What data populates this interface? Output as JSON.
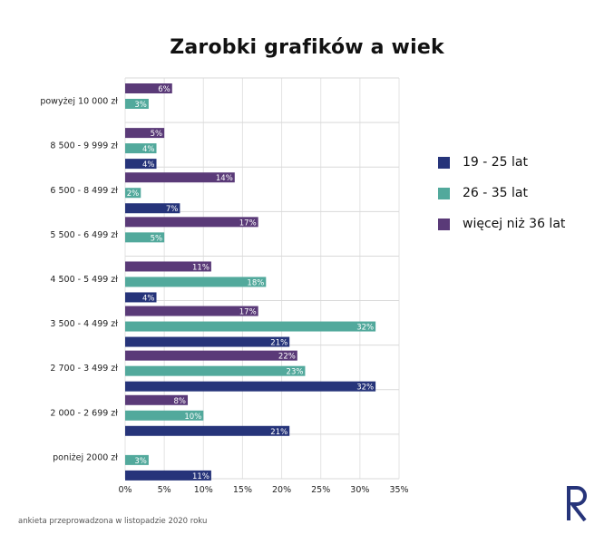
{
  "chart_data": {
    "type": "bar",
    "orientation": "horizontal",
    "title": "Zarobki grafików a wiek",
    "categories": [
      "powyżej 10 000 zł",
      "8 500 - 9 999 zł",
      "6 500 - 8 499 zł",
      "5 500 - 6 499 zł",
      "4 500 - 5 499 zł",
      "3 500 - 4 499 zł",
      "2 700 - 3 499 zł",
      "2 000 - 2 699 zł",
      "poniżej 2000 zł"
    ],
    "series": [
      {
        "name": "więcej niż 36 lat",
        "color": "#5a3a78",
        "values": [
          6,
          5,
          14,
          17,
          11,
          17,
          22,
          8,
          null
        ]
      },
      {
        "name": "26 - 35 lat",
        "color": "#52a99c",
        "values": [
          3,
          4,
          2,
          5,
          18,
          32,
          23,
          10,
          3
        ]
      },
      {
        "name": "19 - 25 lat",
        "color": "#26347a",
        "values": [
          null,
          4,
          7,
          null,
          4,
          21,
          32,
          21,
          11
        ]
      }
    ],
    "xlim": [
      0,
      35
    ],
    "xticks": [
      "0%",
      "5%",
      "10%",
      "15%",
      "20%",
      "25%",
      "30%",
      "35%"
    ],
    "value_suffix": "%",
    "grid": true,
    "legend": {
      "position": "right",
      "entries": [
        {
          "name": "19 - 25 lat",
          "color": "#26347a"
        },
        {
          "name": "26 - 35 lat",
          "color": "#52a99c"
        },
        {
          "name": "więcej niż 36 lat",
          "color": "#5a3a78"
        }
      ]
    }
  },
  "footnote": "ankieta przeprowadzona w listopadzie 2020 roku",
  "logo": {
    "icon": "r-logo-icon",
    "color": "#26347a"
  }
}
